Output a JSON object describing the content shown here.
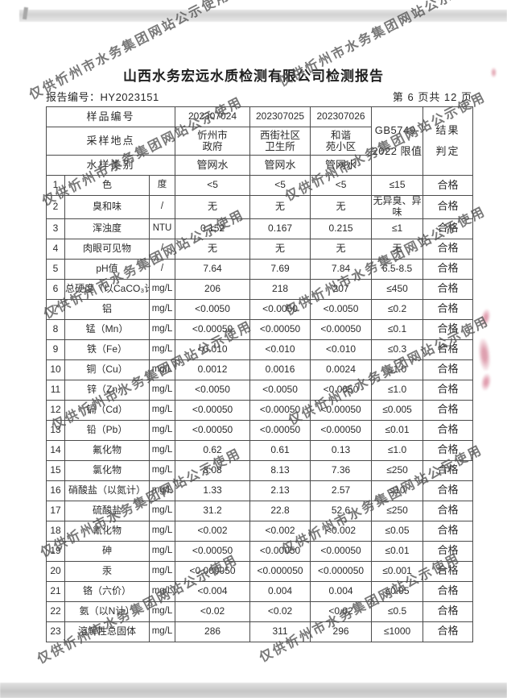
{
  "page": {
    "title": "山西水务宏远水质检测有限公司检测报告",
    "report_no_label": "报告编号：",
    "report_no": "HY2023151",
    "page_indicator": "第 6 页共 12 页"
  },
  "watermark": {
    "text": "仅供忻州市水务集团网站公示使用"
  },
  "table": {
    "header": {
      "sample_no_label": "样品编号",
      "site_label": "采样地点",
      "type_label": "水样类别",
      "sample_ids": [
        "202307024",
        "202307025",
        "202307026"
      ],
      "sites": [
        [
          "忻州市",
          "政府"
        ],
        [
          "西街社区",
          "卫生所"
        ],
        [
          "和谐",
          "苑小区"
        ]
      ],
      "types": [
        "管网水",
        "管网水",
        "管网水"
      ],
      "limit_line1": "GB5749-",
      "limit_line2": "2022 限值",
      "result_line1": "结果",
      "result_line2": "判定"
    },
    "rows": [
      {
        "no": "1",
        "name": "色",
        "unit": "度",
        "v1": "<5",
        "v2": "<5",
        "v3": "<5",
        "limit": "≤15",
        "result": "合格"
      },
      {
        "no": "2",
        "name": "臭和味",
        "unit": "/",
        "v1": "无",
        "v2": "无",
        "v3": "无",
        "limit": "无异臭、异味",
        "result": "合格"
      },
      {
        "no": "3",
        "name": "浑浊度",
        "unit": "NTU",
        "v1": "0.152",
        "v2": "0.167",
        "v3": "0.215",
        "limit": "≤1",
        "result": "合格"
      },
      {
        "no": "4",
        "name": "肉眼可见物",
        "unit": "/",
        "v1": "无",
        "v2": "无",
        "v3": "无",
        "limit": "无",
        "result": "合格"
      },
      {
        "no": "5",
        "name": "pH值",
        "unit": "/",
        "v1": "7.64",
        "v2": "7.69",
        "v3": "7.84",
        "limit": "6.5-8.5",
        "result": "合格"
      },
      {
        "no": "6",
        "name": "总硬度（以CaCO₃计）",
        "unit": "mg/L",
        "v1": "206",
        "v2": "218",
        "v3": "207",
        "limit": "≤450",
        "result": "合格"
      },
      {
        "no": "7",
        "name": "铝",
        "unit": "mg/L",
        "v1": "<0.0050",
        "v2": "<0.0050",
        "v3": "<0.0050",
        "limit": "≤0.2",
        "result": "合格"
      },
      {
        "no": "8",
        "name": "锰（Mn）",
        "unit": "mg/L",
        "v1": "<0.00050",
        "v2": "<0.00050",
        "v3": "<0.00050",
        "limit": "≤0.1",
        "result": "合格"
      },
      {
        "no": "9",
        "name": "铁（Fe）",
        "unit": "mg/L",
        "v1": "<0.010",
        "v2": "<0.010",
        "v3": "<0.010",
        "limit": "≤0.3",
        "result": "合格"
      },
      {
        "no": "10",
        "name": "铜（Cu）",
        "unit": "mg/L",
        "v1": "0.0012",
        "v2": "0.0016",
        "v3": "0.0024",
        "limit": "≤1.0",
        "result": "合格"
      },
      {
        "no": "11",
        "name": "锌（Zn）",
        "unit": "mg/L",
        "v1": "<0.0050",
        "v2": "<0.0050",
        "v3": "<0.0050",
        "limit": "≤1.0",
        "result": "合格"
      },
      {
        "no": "12",
        "name": "镉（Cd）",
        "unit": "mg/L",
        "v1": "<0.00050",
        "v2": "<0.00050",
        "v3": "<0.00050",
        "limit": "≤0.005",
        "result": "合格"
      },
      {
        "no": "13",
        "name": "铅（Pb）",
        "unit": "mg/L",
        "v1": "<0.00050",
        "v2": "<0.00050",
        "v3": "<0.00050",
        "limit": "≤0.01",
        "result": "合格"
      },
      {
        "no": "14",
        "name": "氟化物",
        "unit": "mg/L",
        "v1": "0.62",
        "v2": "0.61",
        "v3": "0.13",
        "limit": "≤1.0",
        "result": "合格"
      },
      {
        "no": "15",
        "name": "氯化物",
        "unit": "mg/L",
        "v1": "8.08",
        "v2": "8.13",
        "v3": "7.36",
        "limit": "≤250",
        "result": "合格"
      },
      {
        "no": "16",
        "name": "硝酸盐（以氮计）",
        "unit": "mg/L",
        "v1": "1.33",
        "v2": "2.13",
        "v3": "2.57",
        "limit": "≤10",
        "result": "合格"
      },
      {
        "no": "17",
        "name": "硫酸盐",
        "unit": "mg/L",
        "v1": "31.2",
        "v2": "22.8",
        "v3": "52.6",
        "limit": "≤250",
        "result": "合格"
      },
      {
        "no": "18",
        "name": "氰化物",
        "unit": "mg/L",
        "v1": "<0.002",
        "v2": "<0.002",
        "v3": "<0.002",
        "limit": "≤0.05",
        "result": "合格"
      },
      {
        "no": "19",
        "name": "砷",
        "unit": "mg/L",
        "v1": "<0.00050",
        "v2": "<0.00050",
        "v3": "<0.00050",
        "limit": "≤0.01",
        "result": "合格"
      },
      {
        "no": "20",
        "name": "汞",
        "unit": "mg/L",
        "v1": "<0.000050",
        "v2": "<0.000050",
        "v3": "<0.000050",
        "limit": "≤0.001",
        "result": "合格"
      },
      {
        "no": "21",
        "name": "铬（六价）",
        "unit": "mg/L",
        "v1": "<0.004",
        "v2": "0.004",
        "v3": "0.004",
        "limit": "≤0.05",
        "result": "合格"
      },
      {
        "no": "22",
        "name": "氨（以N计）",
        "unit": "mg/L",
        "v1": "<0.02",
        "v2": "<0.02",
        "v3": "<0.02",
        "limit": "≤0.5",
        "result": "合格"
      },
      {
        "no": "23",
        "name": "溶解性总固体",
        "unit": "mg/L",
        "v1": "286",
        "v2": "311",
        "v3": "296",
        "limit": "≤1000",
        "result": "合格"
      }
    ]
  }
}
